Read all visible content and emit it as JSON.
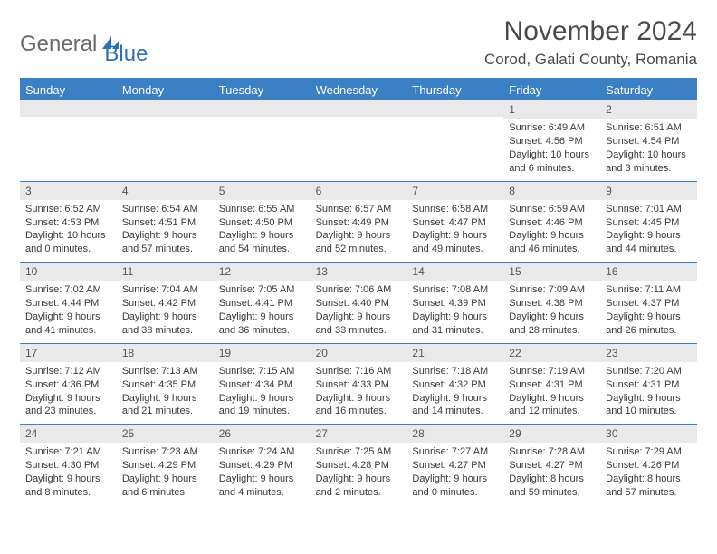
{
  "logo": {
    "word1": "General",
    "word2": "Blue"
  },
  "header": {
    "month_title": "November 2024",
    "location": "Corod, Galati County, Romania"
  },
  "colors": {
    "brand_blue": "#3b7fc4",
    "header_bg": "#3b7fc4",
    "daynum_bg": "#e9e9e9",
    "text": "#3a3a3a"
  },
  "day_headers": [
    "Sunday",
    "Monday",
    "Tuesday",
    "Wednesday",
    "Thursday",
    "Friday",
    "Saturday"
  ],
  "weeks": [
    [
      {
        "n": "",
        "sr": "",
        "ss": "",
        "dl": ""
      },
      {
        "n": "",
        "sr": "",
        "ss": "",
        "dl": ""
      },
      {
        "n": "",
        "sr": "",
        "ss": "",
        "dl": ""
      },
      {
        "n": "",
        "sr": "",
        "ss": "",
        "dl": ""
      },
      {
        "n": "",
        "sr": "",
        "ss": "",
        "dl": ""
      },
      {
        "n": "1",
        "sr": "Sunrise: 6:49 AM",
        "ss": "Sunset: 4:56 PM",
        "dl": "Daylight: 10 hours and 6 minutes."
      },
      {
        "n": "2",
        "sr": "Sunrise: 6:51 AM",
        "ss": "Sunset: 4:54 PM",
        "dl": "Daylight: 10 hours and 3 minutes."
      }
    ],
    [
      {
        "n": "3",
        "sr": "Sunrise: 6:52 AM",
        "ss": "Sunset: 4:53 PM",
        "dl": "Daylight: 10 hours and 0 minutes."
      },
      {
        "n": "4",
        "sr": "Sunrise: 6:54 AM",
        "ss": "Sunset: 4:51 PM",
        "dl": "Daylight: 9 hours and 57 minutes."
      },
      {
        "n": "5",
        "sr": "Sunrise: 6:55 AM",
        "ss": "Sunset: 4:50 PM",
        "dl": "Daylight: 9 hours and 54 minutes."
      },
      {
        "n": "6",
        "sr": "Sunrise: 6:57 AM",
        "ss": "Sunset: 4:49 PM",
        "dl": "Daylight: 9 hours and 52 minutes."
      },
      {
        "n": "7",
        "sr": "Sunrise: 6:58 AM",
        "ss": "Sunset: 4:47 PM",
        "dl": "Daylight: 9 hours and 49 minutes."
      },
      {
        "n": "8",
        "sr": "Sunrise: 6:59 AM",
        "ss": "Sunset: 4:46 PM",
        "dl": "Daylight: 9 hours and 46 minutes."
      },
      {
        "n": "9",
        "sr": "Sunrise: 7:01 AM",
        "ss": "Sunset: 4:45 PM",
        "dl": "Daylight: 9 hours and 44 minutes."
      }
    ],
    [
      {
        "n": "10",
        "sr": "Sunrise: 7:02 AM",
        "ss": "Sunset: 4:44 PM",
        "dl": "Daylight: 9 hours and 41 minutes."
      },
      {
        "n": "11",
        "sr": "Sunrise: 7:04 AM",
        "ss": "Sunset: 4:42 PM",
        "dl": "Daylight: 9 hours and 38 minutes."
      },
      {
        "n": "12",
        "sr": "Sunrise: 7:05 AM",
        "ss": "Sunset: 4:41 PM",
        "dl": "Daylight: 9 hours and 36 minutes."
      },
      {
        "n": "13",
        "sr": "Sunrise: 7:06 AM",
        "ss": "Sunset: 4:40 PM",
        "dl": "Daylight: 9 hours and 33 minutes."
      },
      {
        "n": "14",
        "sr": "Sunrise: 7:08 AM",
        "ss": "Sunset: 4:39 PM",
        "dl": "Daylight: 9 hours and 31 minutes."
      },
      {
        "n": "15",
        "sr": "Sunrise: 7:09 AM",
        "ss": "Sunset: 4:38 PM",
        "dl": "Daylight: 9 hours and 28 minutes."
      },
      {
        "n": "16",
        "sr": "Sunrise: 7:11 AM",
        "ss": "Sunset: 4:37 PM",
        "dl": "Daylight: 9 hours and 26 minutes."
      }
    ],
    [
      {
        "n": "17",
        "sr": "Sunrise: 7:12 AM",
        "ss": "Sunset: 4:36 PM",
        "dl": "Daylight: 9 hours and 23 minutes."
      },
      {
        "n": "18",
        "sr": "Sunrise: 7:13 AM",
        "ss": "Sunset: 4:35 PM",
        "dl": "Daylight: 9 hours and 21 minutes."
      },
      {
        "n": "19",
        "sr": "Sunrise: 7:15 AM",
        "ss": "Sunset: 4:34 PM",
        "dl": "Daylight: 9 hours and 19 minutes."
      },
      {
        "n": "20",
        "sr": "Sunrise: 7:16 AM",
        "ss": "Sunset: 4:33 PM",
        "dl": "Daylight: 9 hours and 16 minutes."
      },
      {
        "n": "21",
        "sr": "Sunrise: 7:18 AM",
        "ss": "Sunset: 4:32 PM",
        "dl": "Daylight: 9 hours and 14 minutes."
      },
      {
        "n": "22",
        "sr": "Sunrise: 7:19 AM",
        "ss": "Sunset: 4:31 PM",
        "dl": "Daylight: 9 hours and 12 minutes."
      },
      {
        "n": "23",
        "sr": "Sunrise: 7:20 AM",
        "ss": "Sunset: 4:31 PM",
        "dl": "Daylight: 9 hours and 10 minutes."
      }
    ],
    [
      {
        "n": "24",
        "sr": "Sunrise: 7:21 AM",
        "ss": "Sunset: 4:30 PM",
        "dl": "Daylight: 9 hours and 8 minutes."
      },
      {
        "n": "25",
        "sr": "Sunrise: 7:23 AM",
        "ss": "Sunset: 4:29 PM",
        "dl": "Daylight: 9 hours and 6 minutes."
      },
      {
        "n": "26",
        "sr": "Sunrise: 7:24 AM",
        "ss": "Sunset: 4:29 PM",
        "dl": "Daylight: 9 hours and 4 minutes."
      },
      {
        "n": "27",
        "sr": "Sunrise: 7:25 AM",
        "ss": "Sunset: 4:28 PM",
        "dl": "Daylight: 9 hours and 2 minutes."
      },
      {
        "n": "28",
        "sr": "Sunrise: 7:27 AM",
        "ss": "Sunset: 4:27 PM",
        "dl": "Daylight: 9 hours and 0 minutes."
      },
      {
        "n": "29",
        "sr": "Sunrise: 7:28 AM",
        "ss": "Sunset: 4:27 PM",
        "dl": "Daylight: 8 hours and 59 minutes."
      },
      {
        "n": "30",
        "sr": "Sunrise: 7:29 AM",
        "ss": "Sunset: 4:26 PM",
        "dl": "Daylight: 8 hours and 57 minutes."
      }
    ]
  ]
}
